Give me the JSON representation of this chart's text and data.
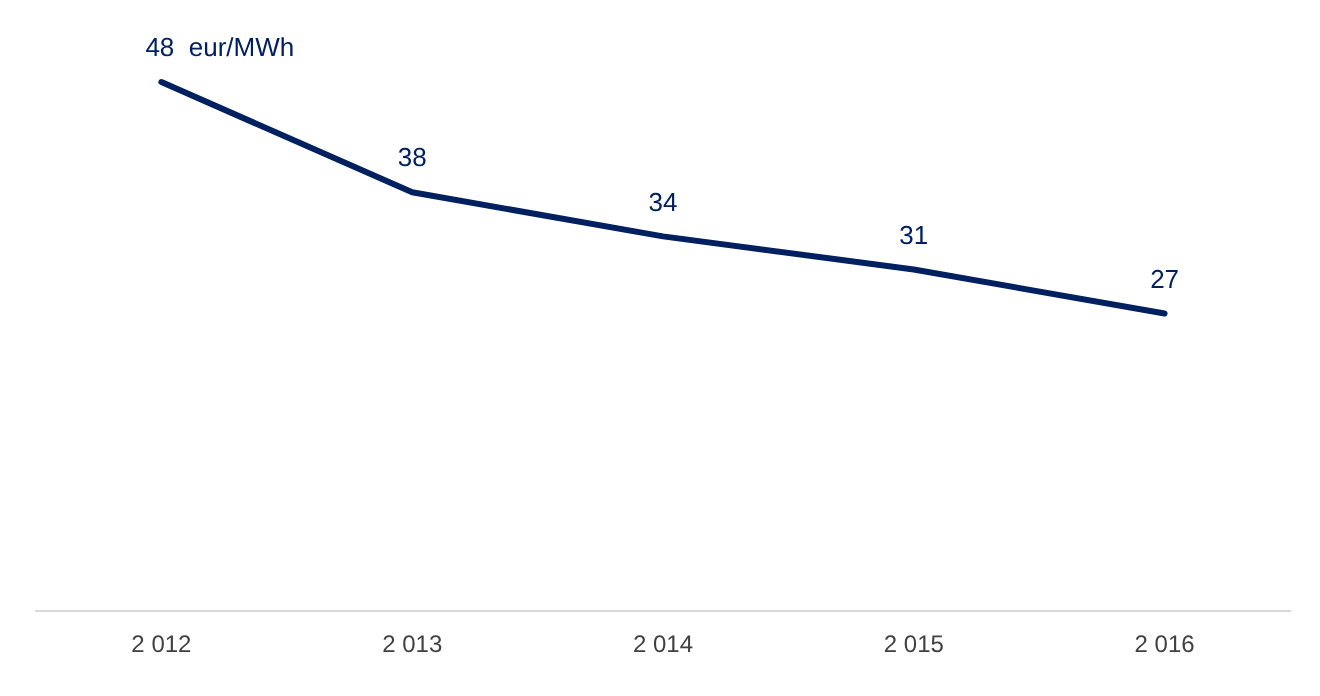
{
  "chart_data": {
    "type": "line",
    "categories": [
      "2 012",
      "2 013",
      "2 014",
      "2 015",
      "2 016"
    ],
    "series": [
      {
        "color": "#002060",
        "values": [
          48,
          38,
          34,
          31,
          27
        ],
        "value_labels": [
          "48  eur/MWh",
          "38",
          "34",
          "31",
          "27"
        ]
      }
    ],
    "tick_labels": "x",
    "grid": false,
    "legend": false,
    "marker": "none",
    "line_style": "solid"
  }
}
